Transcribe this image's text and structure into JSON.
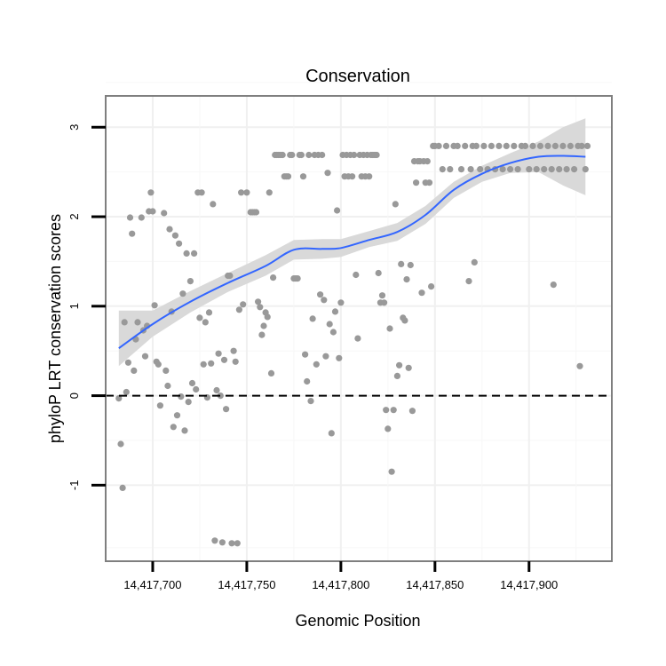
{
  "chart_data": {
    "type": "scatter",
    "title": "Conservation",
    "xlabel": "Genomic Position",
    "ylabel": "phyloP LRT conservation scores",
    "xlim": [
      14417675,
      14417944
    ],
    "ylim": [
      -1.85,
      3.35
    ],
    "x_ticks": [
      14417700,
      14417750,
      14417800,
      14417850,
      14417900
    ],
    "x_tick_labels": [
      "14,417,700",
      "14,417,750",
      "14,417,800",
      "14,417,850",
      "14,417,900"
    ],
    "y_ticks": [
      -1,
      0,
      1,
      2,
      3
    ],
    "y_tick_labels": [
      "-1",
      "0",
      "1",
      "2",
      "3"
    ],
    "grid": true,
    "reference_line": {
      "y": 0,
      "style": "dashed"
    },
    "colors": {
      "points": "#999999",
      "smooth": "#3366ff",
      "ribbon": "#d9d9d9",
      "frame": "#7f7f7f"
    },
    "smooth": {
      "x": [
        14417682,
        14417700,
        14417720,
        14417740,
        14417760,
        14417775,
        14417790,
        14417800,
        14417815,
        14417830,
        14417845,
        14417860,
        14417875,
        14417890,
        14417905,
        14417918,
        14417930
      ],
      "y": [
        0.53,
        0.8,
        1.05,
        1.26,
        1.45,
        1.63,
        1.64,
        1.65,
        1.74,
        1.83,
        2.02,
        2.3,
        2.48,
        2.6,
        2.67,
        2.68,
        2.67
      ],
      "lower": [
        0.33,
        0.66,
        0.93,
        1.16,
        1.34,
        1.52,
        1.53,
        1.55,
        1.66,
        1.73,
        1.92,
        2.21,
        2.39,
        2.49,
        2.5,
        2.35,
        2.24
      ],
      "upper": [
        0.95,
        0.95,
        1.17,
        1.37,
        1.57,
        1.74,
        1.75,
        1.75,
        1.84,
        1.93,
        2.12,
        2.39,
        2.57,
        2.71,
        2.84,
        3.0,
        3.1
      ]
    },
    "points": [
      [
        14417682,
        -0.03
      ],
      [
        14417683,
        -0.54
      ],
      [
        14417684,
        -1.03
      ],
      [
        14417685,
        0.82
      ],
      [
        14417686,
        0.04
      ],
      [
        14417687,
        0.37
      ],
      [
        14417688,
        1.99
      ],
      [
        14417689,
        1.81
      ],
      [
        14417690,
        0.28
      ],
      [
        14417691,
        0.63
      ],
      [
        14417692,
        0.82
      ],
      [
        14417694,
        1.99
      ],
      [
        14417695,
        0.73
      ],
      [
        14417696,
        0.44
      ],
      [
        14417697,
        0.78
      ],
      [
        14417698,
        2.06
      ],
      [
        14417699,
        2.27
      ],
      [
        14417700,
        2.06
      ],
      [
        14417701,
        1.01
      ],
      [
        14417702,
        0.38
      ],
      [
        14417703,
        0.35
      ],
      [
        14417704,
        -0.11
      ],
      [
        14417706,
        2.04
      ],
      [
        14417707,
        0.28
      ],
      [
        14417708,
        0.11
      ],
      [
        14417709,
        1.86
      ],
      [
        14417710,
        0.94
      ],
      [
        14417711,
        -0.35
      ],
      [
        14417712,
        1.79
      ],
      [
        14417713,
        -0.22
      ],
      [
        14417714,
        1.7
      ],
      [
        14417715,
        -0.01
      ],
      [
        14417716,
        1.14
      ],
      [
        14417717,
        -0.39
      ],
      [
        14417718,
        1.59
      ],
      [
        14417719,
        -0.07
      ],
      [
        14417720,
        1.28
      ],
      [
        14417721,
        0.14
      ],
      [
        14417722,
        1.59
      ],
      [
        14417723,
        0.07
      ],
      [
        14417724,
        2.27
      ],
      [
        14417725,
        0.87
      ],
      [
        14417726,
        2.27
      ],
      [
        14417727,
        0.35
      ],
      [
        14417728,
        0.82
      ],
      [
        14417729,
        -0.02
      ],
      [
        14417730,
        0.93
      ],
      [
        14417731,
        0.36
      ],
      [
        14417732,
        2.14
      ],
      [
        14417733,
        -1.62
      ],
      [
        14417734,
        0.06
      ],
      [
        14417735,
        0.47
      ],
      [
        14417736,
        0.0
      ],
      [
        14417737,
        -1.64
      ],
      [
        14417738,
        0.4
      ],
      [
        14417739,
        -0.15
      ],
      [
        14417740,
        1.34
      ],
      [
        14417741,
        1.34
      ],
      [
        14417742,
        -1.65
      ],
      [
        14417743,
        0.5
      ],
      [
        14417744,
        0.38
      ],
      [
        14417745,
        -1.65
      ],
      [
        14417746,
        0.96
      ],
      [
        14417747,
        2.27
      ],
      [
        14417748,
        1.02
      ],
      [
        14417750,
        2.27
      ],
      [
        14417752,
        2.05
      ],
      [
        14417753,
        2.05
      ],
      [
        14417754,
        2.05
      ],
      [
        14417755,
        2.05
      ],
      [
        14417756,
        1.05
      ],
      [
        14417757,
        0.99
      ],
      [
        14417758,
        0.68
      ],
      [
        14417759,
        0.78
      ],
      [
        14417760,
        0.93
      ],
      [
        14417761,
        0.88
      ],
      [
        14417762,
        2.27
      ],
      [
        14417763,
        0.25
      ],
      [
        14417764,
        1.32
      ],
      [
        14417765,
        2.69
      ],
      [
        14417766,
        2.69
      ],
      [
        14417767,
        2.69
      ],
      [
        14417768,
        2.69
      ],
      [
        14417769,
        2.69
      ],
      [
        14417770,
        2.45
      ],
      [
        14417771,
        2.45
      ],
      [
        14417772,
        2.45
      ],
      [
        14417773,
        2.69
      ],
      [
        14417774,
        2.69
      ],
      [
        14417775,
        1.31
      ],
      [
        14417776,
        1.31
      ],
      [
        14417777,
        1.31
      ],
      [
        14417778,
        2.69
      ],
      [
        14417779,
        2.69
      ],
      [
        14417780,
        2.45
      ],
      [
        14417781,
        0.46
      ],
      [
        14417782,
        0.16
      ],
      [
        14417783,
        2.69
      ],
      [
        14417784,
        -0.06
      ],
      [
        14417785,
        0.86
      ],
      [
        14417786,
        2.69
      ],
      [
        14417787,
        0.35
      ],
      [
        14417788,
        2.69
      ],
      [
        14417789,
        1.13
      ],
      [
        14417790,
        2.69
      ],
      [
        14417791,
        1.07
      ],
      [
        14417792,
        0.44
      ],
      [
        14417793,
        2.49
      ],
      [
        14417794,
        0.8
      ],
      [
        14417795,
        -0.42
      ],
      [
        14417796,
        0.71
      ],
      [
        14417797,
        0.94
      ],
      [
        14417798,
        2.07
      ],
      [
        14417799,
        0.42
      ],
      [
        14417800,
        1.04
      ],
      [
        14417801,
        2.69
      ],
      [
        14417802,
        2.45
      ],
      [
        14417803,
        2.69
      ],
      [
        14417804,
        2.45
      ],
      [
        14417805,
        2.69
      ],
      [
        14417806,
        2.45
      ],
      [
        14417807,
        2.69
      ],
      [
        14417808,
        1.35
      ],
      [
        14417809,
        0.64
      ],
      [
        14417810,
        2.69
      ],
      [
        14417811,
        2.45
      ],
      [
        14417812,
        2.69
      ],
      [
        14417813,
        2.45
      ],
      [
        14417814,
        2.69
      ],
      [
        14417815,
        2.45
      ],
      [
        14417816,
        2.69
      ],
      [
        14417817,
        2.69
      ],
      [
        14417818,
        2.69
      ],
      [
        14417819,
        2.69
      ],
      [
        14417820,
        1.37
      ],
      [
        14417821,
        1.04
      ],
      [
        14417822,
        1.12
      ],
      [
        14417823,
        1.04
      ],
      [
        14417824,
        -0.16
      ],
      [
        14417825,
        -0.37
      ],
      [
        14417826,
        0.75
      ],
      [
        14417827,
        -0.85
      ],
      [
        14417828,
        -0.16
      ],
      [
        14417829,
        2.14
      ],
      [
        14417830,
        0.22
      ],
      [
        14417831,
        0.34
      ],
      [
        14417832,
        1.47
      ],
      [
        14417833,
        0.87
      ],
      [
        14417834,
        0.84
      ],
      [
        14417835,
        1.3
      ],
      [
        14417836,
        0.31
      ],
      [
        14417837,
        1.46
      ],
      [
        14417838,
        -0.17
      ],
      [
        14417839,
        2.62
      ],
      [
        14417840,
        2.38
      ],
      [
        14417841,
        2.62
      ],
      [
        14417842,
        2.62
      ],
      [
        14417843,
        1.15
      ],
      [
        14417844,
        2.62
      ],
      [
        14417845,
        2.38
      ],
      [
        14417846,
        2.62
      ],
      [
        14417847,
        2.38
      ],
      [
        14417848,
        1.22
      ],
      [
        14417849,
        2.79
      ],
      [
        14417850,
        2.79
      ],
      [
        14417852,
        2.79
      ],
      [
        14417854,
        2.53
      ],
      [
        14417856,
        2.79
      ],
      [
        14417858,
        2.53
      ],
      [
        14417860,
        2.79
      ],
      [
        14417862,
        2.79
      ],
      [
        14417864,
        2.53
      ],
      [
        14417866,
        2.79
      ],
      [
        14417868,
        1.28
      ],
      [
        14417869,
        2.53
      ],
      [
        14417870,
        2.79
      ],
      [
        14417871,
        1.49
      ],
      [
        14417872,
        2.79
      ],
      [
        14417874,
        2.53
      ],
      [
        14417876,
        2.79
      ],
      [
        14417878,
        2.53
      ],
      [
        14417880,
        2.79
      ],
      [
        14417882,
        2.53
      ],
      [
        14417884,
        2.79
      ],
      [
        14417886,
        2.53
      ],
      [
        14417888,
        2.79
      ],
      [
        14417890,
        2.53
      ],
      [
        14417892,
        2.79
      ],
      [
        14417894,
        2.53
      ],
      [
        14417896,
        2.79
      ],
      [
        14417898,
        2.79
      ],
      [
        14417900,
        2.53
      ],
      [
        14417902,
        2.79
      ],
      [
        14417904,
        2.53
      ],
      [
        14417906,
        2.79
      ],
      [
        14417908,
        2.53
      ],
      [
        14417910,
        2.79
      ],
      [
        14417912,
        2.53
      ],
      [
        14417913,
        1.24
      ],
      [
        14417914,
        2.79
      ],
      [
        14417916,
        2.53
      ],
      [
        14417918,
        2.79
      ],
      [
        14417920,
        2.53
      ],
      [
        14417922,
        2.79
      ],
      [
        14417924,
        2.53
      ],
      [
        14417926,
        2.79
      ],
      [
        14417927,
        0.33
      ],
      [
        14417928,
        2.79
      ],
      [
        14417930,
        2.53
      ],
      [
        14417931,
        2.79
      ]
    ]
  }
}
